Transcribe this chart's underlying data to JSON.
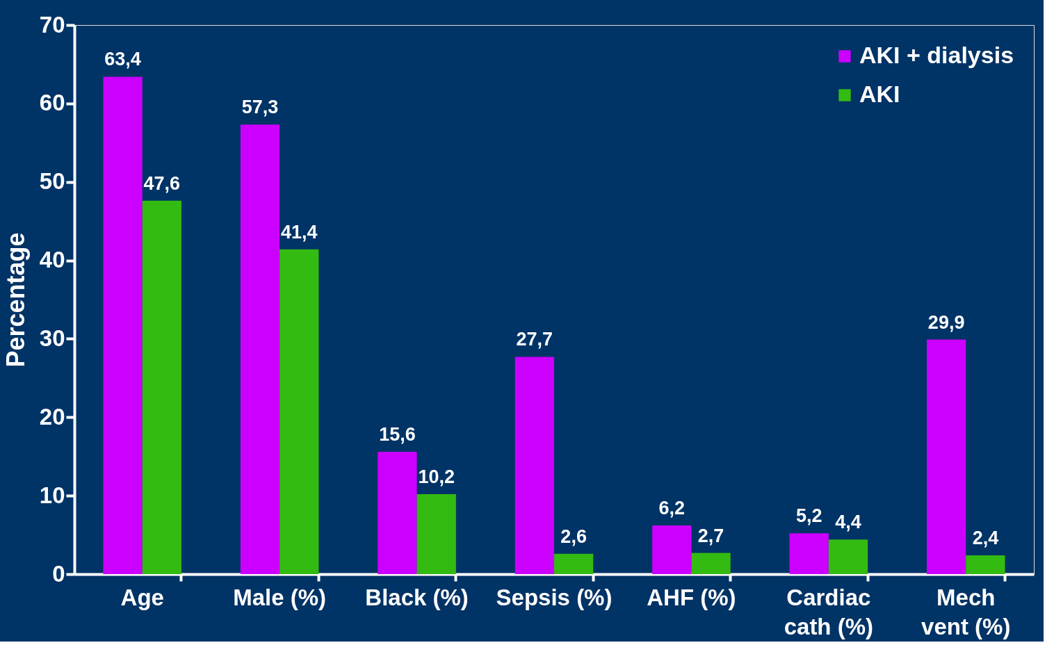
{
  "chart_data": {
    "type": "bar",
    "ylabel": "Percentage",
    "categories": [
      "Age",
      "Male (%)",
      "Black (%)",
      "Sepsis (%)",
      "AHF (%)",
      "Cardiac cath (%)",
      "Mech vent (%)"
    ],
    "series": [
      {
        "name": "AKI + dialysis",
        "color": "#cc00ff",
        "values": [
          63.4,
          57.3,
          15.6,
          27.7,
          6.2,
          5.2,
          29.9
        ],
        "value_labels": [
          "63,4",
          "57,3",
          "15,6",
          "27,7",
          "6,2",
          "5,2",
          "29,9"
        ]
      },
      {
        "name": "AKI",
        "color": "#33bb11",
        "values": [
          47.6,
          41.4,
          10.2,
          2.6,
          2.7,
          4.4,
          2.4
        ],
        "value_labels": [
          "47,6",
          "41,4",
          "10,2",
          "2,6",
          "2,7",
          "4,4",
          "2,4"
        ]
      }
    ],
    "ylim": [
      0,
      70
    ],
    "yticks": [
      0,
      10,
      20,
      30,
      40,
      50,
      60,
      70
    ],
    "grid": false,
    "legend": "top right"
  }
}
